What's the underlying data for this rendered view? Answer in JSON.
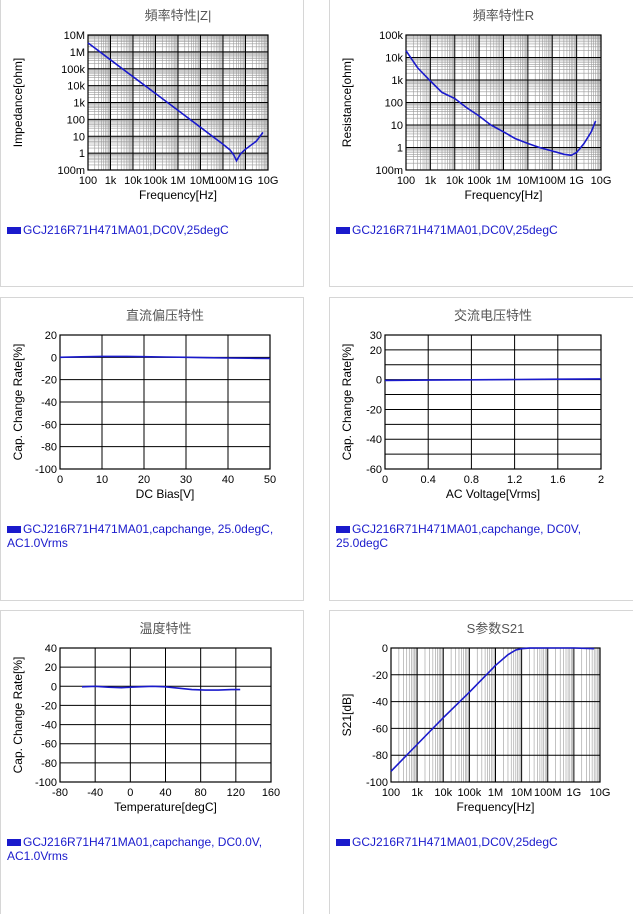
{
  "chart_data": [
    {
      "id": "imp",
      "type": "line",
      "title": "頻率特性|Z|",
      "xlabel": "Frequency[Hz]",
      "ylabel": "Impedance[ohm]",
      "xscale": "log",
      "yscale": "log",
      "xlim": [
        100,
        10000000000
      ],
      "ylim": [
        0.1,
        10000000
      ],
      "xticks": [
        {
          "v": 100,
          "t": "100"
        },
        {
          "v": 1000,
          "t": "1k"
        },
        {
          "v": 10000,
          "t": "10k"
        },
        {
          "v": 100000,
          "t": "100k"
        },
        {
          "v": 1000000,
          "t": "1M"
        },
        {
          "v": 10000000,
          "t": "10M"
        },
        {
          "v": 100000000,
          "t": "100M"
        },
        {
          "v": 1000000000,
          "t": "1G"
        },
        {
          "v": 10000000000,
          "t": "10G"
        }
      ],
      "yticks": [
        {
          "v": 0.1,
          "t": "100m"
        },
        {
          "v": 1,
          "t": "1"
        },
        {
          "v": 10,
          "t": "10"
        },
        {
          "v": 100,
          "t": "100"
        },
        {
          "v": 1000,
          "t": "1k"
        },
        {
          "v": 10000,
          "t": "10k"
        },
        {
          "v": 100000,
          "t": "100k"
        },
        {
          "v": 1000000,
          "t": "1M"
        },
        {
          "v": 10000000,
          "t": "10M"
        }
      ],
      "grid": true,
      "series": [
        {
          "legend": "GCJ216R71H471MA01,DC0V,25degC",
          "x": [
            100,
            1000,
            10000,
            100000,
            1000000,
            10000000,
            100000000,
            200000000,
            300000000,
            400000000,
            600000000,
            1000000000,
            3000000000,
            6000000000
          ],
          "y": [
            3400000,
            340000,
            34000,
            3400,
            340,
            34,
            3.4,
            1.6,
            0.8,
            0.35,
            0.9,
            1.7,
            5,
            17
          ]
        }
      ],
      "legend_text": "GCJ216R71H471MA01,DC0V,25degC"
    },
    {
      "id": "res",
      "type": "line",
      "title": "頻率特性R",
      "xlabel": "Frequency[Hz]",
      "ylabel": "Resistance[ohm]",
      "xscale": "log",
      "yscale": "log",
      "xlim": [
        100,
        10000000000
      ],
      "ylim": [
        0.1,
        100000
      ],
      "xticks": [
        {
          "v": 100,
          "t": "100"
        },
        {
          "v": 1000,
          "t": "1k"
        },
        {
          "v": 10000,
          "t": "10k"
        },
        {
          "v": 100000,
          "t": "100k"
        },
        {
          "v": 1000000,
          "t": "1M"
        },
        {
          "v": 10000000,
          "t": "10M"
        },
        {
          "v": 100000000,
          "t": "100M"
        },
        {
          "v": 1000000000,
          "t": "1G"
        },
        {
          "v": 10000000000,
          "t": "10G"
        }
      ],
      "yticks": [
        {
          "v": 0.1,
          "t": "100m"
        },
        {
          "v": 1,
          "t": "1"
        },
        {
          "v": 10,
          "t": "10"
        },
        {
          "v": 100,
          "t": "100"
        },
        {
          "v": 1000,
          "t": "1k"
        },
        {
          "v": 10000,
          "t": "10k"
        },
        {
          "v": 100000,
          "t": "100k"
        }
      ],
      "grid": true,
      "series": [
        {
          "legend": "GCJ216R71H471MA01,DC0V,25degC",
          "x": [
            100,
            300,
            1000,
            3000,
            10000,
            30000,
            100000,
            300000,
            1000000,
            3000000,
            10000000,
            30000000,
            100000000,
            300000000,
            600000000,
            1000000000,
            2000000000,
            4000000000,
            6000000000
          ],
          "y": [
            20000,
            3500,
            900,
            280,
            150,
            60,
            25,
            10,
            5,
            2.5,
            1.5,
            1,
            0.7,
            0.5,
            0.45,
            0.6,
            1.5,
            5,
            15
          ]
        }
      ],
      "legend_text": "GCJ216R71H471MA01,DC0V,25degC"
    },
    {
      "id": "dcb",
      "type": "line",
      "title": "直流偏压特性",
      "xlabel": "DC Bias[V]",
      "ylabel": "Cap. Change Rate[%]",
      "xscale": "linear",
      "yscale": "linear",
      "xlim": [
        0,
        50
      ],
      "ylim": [
        -100,
        20
      ],
      "xticks": [
        {
          "v": 0,
          "t": "0"
        },
        {
          "v": 10,
          "t": "10"
        },
        {
          "v": 20,
          "t": "20"
        },
        {
          "v": 30,
          "t": "30"
        },
        {
          "v": 40,
          "t": "40"
        },
        {
          "v": 50,
          "t": "50"
        }
      ],
      "yticks": [
        {
          "v": 20,
          "t": "20"
        },
        {
          "v": 0,
          "t": "0"
        },
        {
          "v": -20,
          "t": "-20"
        },
        {
          "v": -40,
          "t": "-40"
        },
        {
          "v": -60,
          "t": "-60"
        },
        {
          "v": -80,
          "t": "-80"
        },
        {
          "v": -100,
          "t": "-100"
        }
      ],
      "grid": true,
      "series": [
        {
          "legend": "GCJ216R71H471MA01,capchange, 25.0degC, AC1.0Vrms",
          "x": [
            0,
            5,
            10,
            15,
            20,
            25,
            30,
            35,
            40,
            45,
            50
          ],
          "y": [
            0,
            0.5,
            0.8,
            0.8,
            0.6,
            0.3,
            0,
            -0.3,
            -0.6,
            -0.8,
            -1
          ]
        }
      ],
      "legend_text": "GCJ216R71H471MA01,capchange, 25.0degC, AC1.0Vrms"
    },
    {
      "id": "acv",
      "type": "line",
      "title": "交流电压特性",
      "xlabel": "AC Voltage[Vrms]",
      "ylabel": "Cap. Change Rate[%]",
      "xscale": "linear",
      "yscale": "linear",
      "xlim": [
        0,
        2
      ],
      "ylim": [
        -60,
        30
      ],
      "xticks": [
        {
          "v": 0,
          "t": "0"
        },
        {
          "v": 0.4,
          "t": "0.4"
        },
        {
          "v": 0.8,
          "t": "0.8"
        },
        {
          "v": 1.2,
          "t": "1.2"
        },
        {
          "v": 1.6,
          "t": "1.6"
        },
        {
          "v": 2,
          "t": "2"
        }
      ],
      "yticks": [
        {
          "v": 30,
          "t": "30"
        },
        {
          "v": 20,
          "t": "20"
        },
        {
          "v": 0,
          "t": "0"
        },
        {
          "v": -20,
          "t": "-20"
        },
        {
          "v": -40,
          "t": "-40"
        },
        {
          "v": -60,
          "t": "-60"
        }
      ],
      "ygrid": [
        30,
        20,
        0,
        -20,
        -40,
        -60
      ],
      "grid": true,
      "series": [
        {
          "legend": "GCJ216R71H471MA01,capchange, DC0V, 25.0degC",
          "x": [
            0,
            0.4,
            0.8,
            1.2,
            1.6,
            2
          ],
          "y": [
            -0.5,
            -0.3,
            -0.1,
            0.1,
            0.3,
            0.5
          ]
        }
      ],
      "legend_text": "GCJ216R71H471MA01,capchange, DC0V, 25.0degC"
    },
    {
      "id": "tmp",
      "type": "line",
      "title": "温度特性",
      "xlabel": "Temperature[degC]",
      "ylabel": "Cap. Change Rate[%]",
      "xscale": "linear",
      "yscale": "linear",
      "xlim": [
        -80,
        160
      ],
      "ylim": [
        -100,
        40
      ],
      "xticks": [
        {
          "v": -80,
          "t": "-80"
        },
        {
          "v": -40,
          "t": "-40"
        },
        {
          "v": 0,
          "t": "0"
        },
        {
          "v": 40,
          "t": "40"
        },
        {
          "v": 80,
          "t": "80"
        },
        {
          "v": 120,
          "t": "120"
        },
        {
          "v": 160,
          "t": "160"
        }
      ],
      "yticks": [
        {
          "v": 40,
          "t": "40"
        },
        {
          "v": 20,
          "t": "20"
        },
        {
          "v": 0,
          "t": "0"
        },
        {
          "v": -20,
          "t": "-20"
        },
        {
          "v": -40,
          "t": "-40"
        },
        {
          "v": -60,
          "t": "-60"
        },
        {
          "v": -80,
          "t": "-80"
        },
        {
          "v": -100,
          "t": "-100"
        }
      ],
      "grid": true,
      "series": [
        {
          "legend": "GCJ216R71H471MA01,capchange, DC0.0V, AC1.0Vrms",
          "x": [
            -55,
            -40,
            -25,
            -10,
            0,
            10,
            25,
            40,
            55,
            70,
            85,
            100,
            115,
            125
          ],
          "y": [
            -0.5,
            0,
            -1,
            -1.5,
            -1,
            -0.5,
            0,
            -0.5,
            -2,
            -3.5,
            -4,
            -4,
            -3.5,
            -3.5
          ]
        }
      ],
      "legend_text": "GCJ216R71H471MA01,capchange, DC0.0V, AC1.0Vrms"
    },
    {
      "id": "s21",
      "type": "line",
      "title": "S参数S21",
      "xlabel": "Frequency[Hz]",
      "ylabel": "S21[dB]",
      "xscale": "log",
      "yscale": "linear",
      "xlim": [
        100,
        10000000000
      ],
      "ylim": [
        -100,
        0
      ],
      "xticks": [
        {
          "v": 100,
          "t": "100"
        },
        {
          "v": 1000,
          "t": "1k"
        },
        {
          "v": 10000,
          "t": "10k"
        },
        {
          "v": 100000,
          "t": "100k"
        },
        {
          "v": 1000000,
          "t": "1M"
        },
        {
          "v": 10000000,
          "t": "10M"
        },
        {
          "v": 100000000,
          "t": "100M"
        },
        {
          "v": 1000000000,
          "t": "1G"
        },
        {
          "v": 10000000000,
          "t": "10G"
        }
      ],
      "yticks": [
        {
          "v": 0,
          "t": "0"
        },
        {
          "v": -20,
          "t": "-20"
        },
        {
          "v": -40,
          "t": "-40"
        },
        {
          "v": -60,
          "t": "-60"
        },
        {
          "v": -80,
          "t": "-80"
        },
        {
          "v": -100,
          "t": "-100"
        }
      ],
      "grid": true,
      "series": [
        {
          "legend": "GCJ216R71H471MA01,DC0V,25degC",
          "x": [
            100,
            1000,
            10000,
            100000,
            1000000,
            3000000,
            6000000,
            10000000,
            20000000,
            100000000,
            1000000000,
            6000000000
          ],
          "y": [
            -92,
            -72,
            -52,
            -33,
            -13,
            -5,
            -1.5,
            -0.5,
            -0.1,
            0,
            0,
            -0.5
          ]
        }
      ],
      "legend_text": "GCJ216R71H471MA01,DC0V,25degC"
    }
  ],
  "colors": {
    "curve": "#1a1acc",
    "grid": "#000000",
    "minor_grid": "#9a9a9a",
    "title": "#555555"
  }
}
